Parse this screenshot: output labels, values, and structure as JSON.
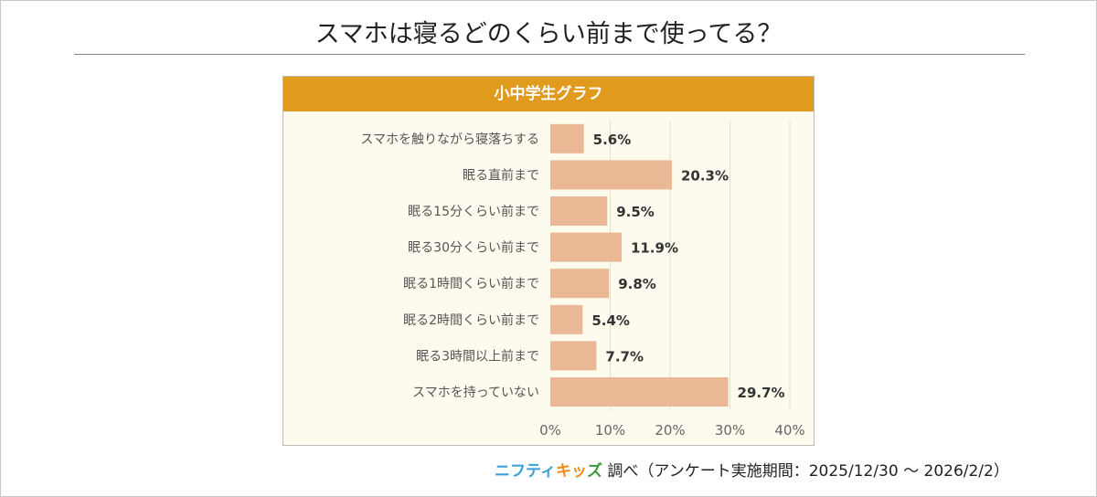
{
  "title": "スマホは寝るどのくらい前まで使ってる？",
  "chart_data": {
    "type": "bar",
    "orientation": "horizontal",
    "title": "小中学生グラフ",
    "categories": [
      "スマホを触りながら寝落ちする",
      "眠る直前まで",
      "眠る15分くらい前まで",
      "眠る30分くらい前まで",
      "眠る1時間くらい前まで",
      "眠る2時間くらい前まで",
      "眠る3時間以上前まで",
      "スマホを持っていない"
    ],
    "values": [
      5.6,
      20.3,
      9.5,
      11.9,
      9.8,
      5.4,
      7.7,
      29.7
    ],
    "data_labels": [
      "5.6%",
      "20.3%",
      "9.5%",
      "11.9%",
      "9.8%",
      "5.4%",
      "7.7%",
      "29.7%"
    ],
    "xlim": [
      0,
      40
    ],
    "ticks": [
      "0%",
      "10%",
      "20%",
      "30%",
      "40%"
    ],
    "grid": true,
    "bar_color": "#ebb896",
    "header_color": "#e09a1e"
  },
  "credit": {
    "logo_part1": "ニフティ",
    "logo_part2": "キッ",
    "logo_part3": "ズ",
    "text": "調べ（アンケート実施期間：2025/12/30 ～ 2026/2/2）"
  }
}
